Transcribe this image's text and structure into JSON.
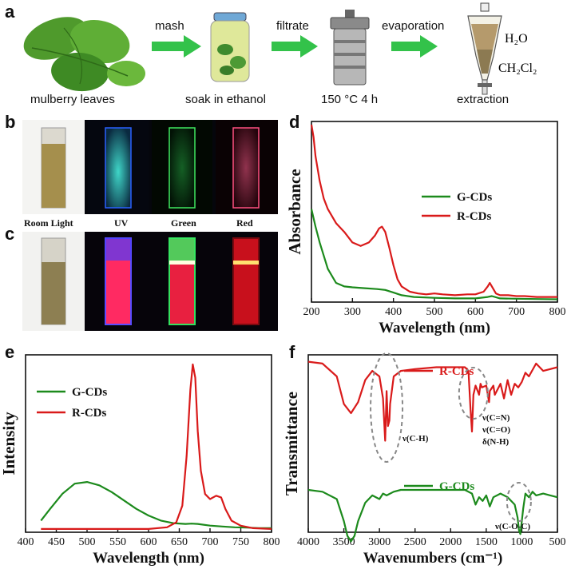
{
  "panel_letters": {
    "a": "a",
    "b": "b",
    "c": "c",
    "d": "d",
    "e": "e",
    "f": "f"
  },
  "scheme": {
    "steps": [
      "mulberry leaves",
      "soak in ethanol",
      "150 °C 4 h",
      "extraction"
    ],
    "arrows": [
      "mash",
      "filtrate",
      "evaporation"
    ],
    "h2o": "H₂O",
    "ch2cl2": "CH₂Cl₂"
  },
  "photo_captions": [
    "Room Light",
    "UV",
    "Green",
    "Red"
  ],
  "colors": {
    "green": "#1c8a1c",
    "red": "#d91a1a",
    "accent_arrow": "#33c24a"
  },
  "chart_data": [
    {
      "panel": "d",
      "type": "line",
      "xlabel": "Wavelength (nm)",
      "ylabel": "Absorbance",
      "xlim": [
        200,
        800
      ],
      "xticks": [
        200,
        300,
        400,
        500,
        600,
        700,
        800
      ],
      "series": [
        {
          "name": "G-CDs",
          "x": [
            200,
            210,
            220,
            240,
            260,
            280,
            300,
            330,
            360,
            380,
            400,
            420,
            450,
            500,
            550,
            600,
            630,
            640,
            660,
            700,
            750,
            800
          ],
          "y": [
            0.52,
            0.42,
            0.33,
            0.18,
            0.1,
            0.08,
            0.075,
            0.07,
            0.065,
            0.06,
            0.045,
            0.03,
            0.02,
            0.015,
            0.012,
            0.012,
            0.02,
            0.025,
            0.012,
            0.01,
            0.008,
            0.007
          ]
        },
        {
          "name": "R-CDs",
          "x": [
            200,
            205,
            210,
            220,
            230,
            240,
            260,
            280,
            300,
            320,
            340,
            355,
            365,
            372,
            380,
            390,
            400,
            410,
            420,
            440,
            460,
            480,
            500,
            520,
            550,
            580,
            600,
            620,
            630,
            635,
            640,
            650,
            660,
            680,
            700,
            720,
            750,
            800
          ],
          "y": [
            1.0,
            0.93,
            0.82,
            0.68,
            0.58,
            0.52,
            0.44,
            0.39,
            0.33,
            0.31,
            0.33,
            0.37,
            0.41,
            0.42,
            0.39,
            0.3,
            0.2,
            0.12,
            0.08,
            0.05,
            0.04,
            0.035,
            0.04,
            0.035,
            0.03,
            0.035,
            0.035,
            0.05,
            0.08,
            0.1,
            0.08,
            0.04,
            0.03,
            0.03,
            0.025,
            0.025,
            0.02,
            0.02
          ]
        }
      ]
    },
    {
      "panel": "e",
      "type": "line",
      "xlabel": "Wavelength (nm)",
      "ylabel": "Intensity",
      "xlim": [
        400,
        800
      ],
      "xticks": [
        400,
        450,
        500,
        550,
        600,
        650,
        700,
        750,
        800
      ],
      "series": [
        {
          "name": "G-CDs",
          "x": [
            425,
            440,
            460,
            480,
            500,
            520,
            540,
            560,
            580,
            600,
            620,
            640,
            660,
            670,
            680,
            700,
            720,
            740,
            760,
            780,
            800
          ],
          "y": [
            0.06,
            0.13,
            0.22,
            0.28,
            0.29,
            0.27,
            0.23,
            0.18,
            0.13,
            0.09,
            0.06,
            0.045,
            0.04,
            0.042,
            0.04,
            0.03,
            0.025,
            0.02,
            0.018,
            0.015,
            0.015
          ]
        },
        {
          "name": "R-CDs",
          "x": [
            425,
            450,
            500,
            550,
            600,
            630,
            645,
            655,
            662,
            668,
            672,
            676,
            680,
            685,
            692,
            700,
            710,
            718,
            725,
            735,
            750,
            770,
            800
          ],
          "y": [
            0.01,
            0.01,
            0.01,
            0.01,
            0.01,
            0.02,
            0.05,
            0.15,
            0.45,
            0.85,
            1.0,
            0.92,
            0.6,
            0.36,
            0.22,
            0.19,
            0.21,
            0.2,
            0.13,
            0.06,
            0.03,
            0.015,
            0.01
          ]
        }
      ]
    },
    {
      "panel": "f",
      "type": "line",
      "xlabel": "Wavenumbers (cm⁻¹)",
      "ylabel": "Transmittance",
      "xlim": [
        4000,
        500
      ],
      "xticks": [
        4000,
        3500,
        3000,
        2500,
        2000,
        1500,
        1000,
        500
      ],
      "annotations": [
        "ν(C-H)",
        "ν(C=N)",
        "ν(C=O)",
        "δ(N-H)",
        "ν(C-O-C)"
      ],
      "series": [
        {
          "name": "R-CDs",
          "x": [
            4000,
            3800,
            3600,
            3500,
            3400,
            3300,
            3200,
            3100,
            3000,
            2950,
            2920,
            2900,
            2880,
            2860,
            2850,
            2800,
            2700,
            2500,
            2200,
            2000,
            1800,
            1750,
            1720,
            1700,
            1680,
            1650,
            1620,
            1600,
            1580,
            1560,
            1500,
            1460,
            1450,
            1400,
            1380,
            1300,
            1250,
            1200,
            1150,
            1100,
            1050,
            1000,
            950,
            900,
            800,
            700,
            600,
            500
          ],
          "y": [
            0.98,
            0.97,
            0.9,
            0.75,
            0.7,
            0.76,
            0.88,
            0.93,
            0.9,
            0.78,
            0.55,
            0.82,
            0.63,
            0.66,
            0.75,
            0.9,
            0.93,
            0.94,
            0.95,
            0.95,
            0.95,
            0.93,
            0.72,
            0.6,
            0.8,
            0.85,
            0.82,
            0.8,
            0.86,
            0.84,
            0.85,
            0.76,
            0.82,
            0.85,
            0.8,
            0.86,
            0.78,
            0.88,
            0.8,
            0.86,
            0.84,
            0.87,
            0.92,
            0.9,
            0.97,
            0.93,
            0.94,
            0.95
          ]
        },
        {
          "name": "G-CDs",
          "x": [
            4000,
            3800,
            3600,
            3500,
            3450,
            3400,
            3350,
            3300,
            3200,
            3100,
            3000,
            2950,
            2900,
            2800,
            2700,
            2500,
            2200,
            2000,
            1800,
            1700,
            1650,
            1600,
            1550,
            1500,
            1450,
            1400,
            1300,
            1200,
            1100,
            1060,
            1040,
            1020,
            1000,
            980,
            950,
            900,
            850,
            800,
            700,
            600,
            500
          ],
          "y": [
            0.5,
            0.49,
            0.45,
            0.33,
            0.25,
            0.22,
            0.25,
            0.33,
            0.43,
            0.47,
            0.45,
            0.48,
            0.47,
            0.49,
            0.5,
            0.5,
            0.5,
            0.5,
            0.5,
            0.48,
            0.42,
            0.46,
            0.44,
            0.47,
            0.41,
            0.46,
            0.48,
            0.46,
            0.42,
            0.35,
            0.28,
            0.26,
            0.33,
            0.4,
            0.48,
            0.46,
            0.49,
            0.47,
            0.48,
            0.47,
            0.46
          ]
        }
      ]
    }
  ]
}
